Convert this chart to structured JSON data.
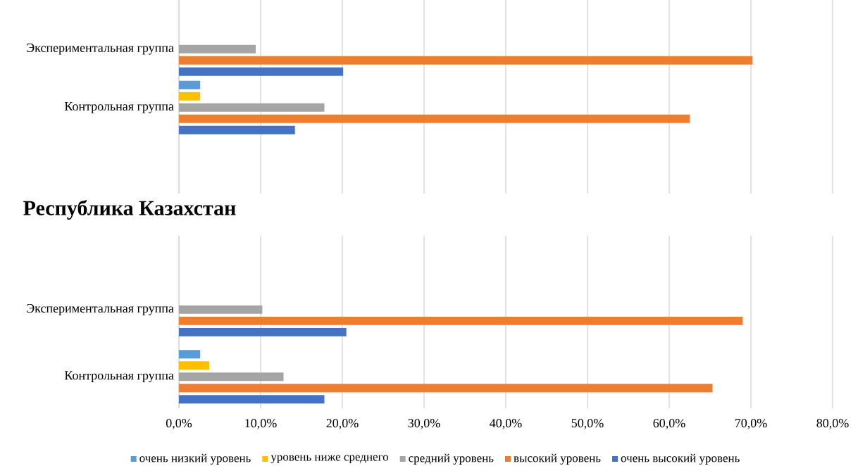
{
  "chart_data": [
    {
      "type": "bar",
      "orientation": "horizontal",
      "categories": [
        "Экспериментальная группа",
        "Контрольная группа"
      ],
      "series": [
        {
          "color": "#5b9bd5",
          "values": [
            0,
            2.6
          ]
        },
        {
          "color": "#ffc000",
          "values": [
            0,
            2.6
          ]
        },
        {
          "color": "#a5a5a5",
          "values": [
            9.4,
            17.8
          ]
        },
        {
          "color": "#ed7d31",
          "values": [
            70.2,
            62.5
          ]
        },
        {
          "color": "#4472c4",
          "values": [
            20.1,
            14.2
          ]
        }
      ],
      "xlim": [
        0,
        80
      ],
      "xticks": [
        0,
        10,
        20,
        30,
        40,
        50,
        60,
        70,
        80
      ],
      "grid": "x",
      "tick_labels": "y"
    },
    {
      "type": "bar",
      "orientation": "horizontal",
      "title": "Республика Казахстан",
      "categories": [
        "Экспериментальная группа",
        "Контрольная группа"
      ],
      "series": [
        {
          "name": "очень низкий уровень",
          "color": "#5b9bd5",
          "values": [
            0,
            2.6
          ]
        },
        {
          "name": "уровень ниже среднего",
          "color": "#ffc000",
          "values": [
            0,
            3.7
          ]
        },
        {
          "name": "средний уровень",
          "color": "#a5a5a5",
          "values": [
            10.2,
            12.8
          ]
        },
        {
          "name": "высокий уровень",
          "color": "#ed7d31",
          "values": [
            69.0,
            65.3
          ]
        },
        {
          "name": "очень высокий уровень",
          "color": "#4472c4",
          "values": [
            20.5,
            17.8
          ]
        }
      ],
      "xlim": [
        0,
        80
      ],
      "xticks": [
        {
          "value": 0,
          "label": "0,0%"
        },
        {
          "value": 10,
          "label": "10,0%"
        },
        {
          "value": 20,
          "label": "20,0%"
        },
        {
          "value": 30,
          "label": "30,0%"
        },
        {
          "value": 40,
          "label": "40,0%"
        },
        {
          "value": 50,
          "label": "50,0%"
        },
        {
          "value": 60,
          "label": "60,0%"
        },
        {
          "value": 70,
          "label": "70,0%"
        },
        {
          "value": 80,
          "label": "80,0%"
        }
      ],
      "grid": "x",
      "legend": "bottom"
    }
  ]
}
